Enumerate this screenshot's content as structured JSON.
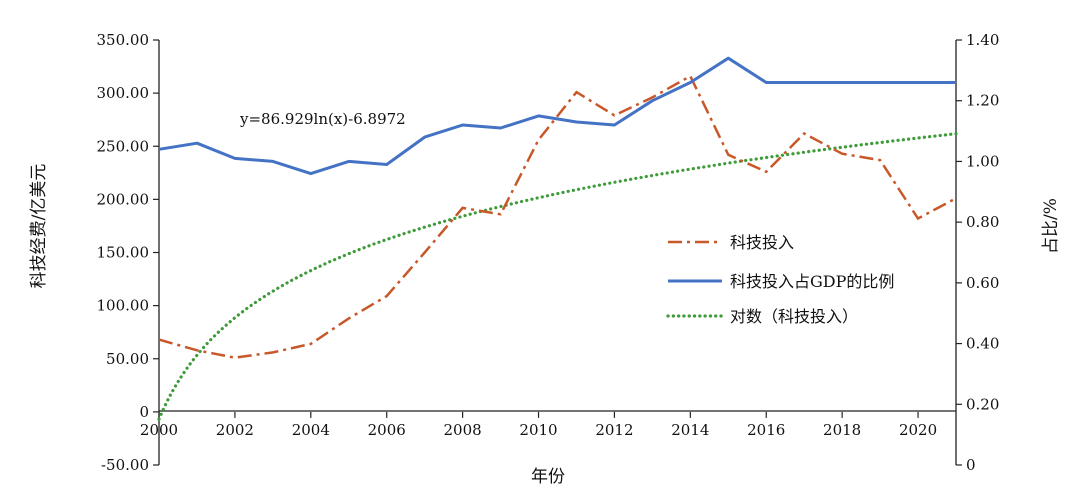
{
  "chart_data": {
    "type": "line",
    "xlabel": "年份",
    "ylabel_left": "科技经费/亿美元",
    "ylabel_right": "占比/%",
    "xlim": [
      2000,
      2021
    ],
    "ylim_left": [
      -50,
      350
    ],
    "ylim_right": [
      0,
      1.4
    ],
    "x_ticks": [
      "2000",
      "2002",
      "2004",
      "2006",
      "2008",
      "2010",
      "2012",
      "2014",
      "2016",
      "2018",
      "2020"
    ],
    "y_left_ticks": [
      "-50.00",
      "0",
      "50.00",
      "100.00",
      "150.00",
      "200.00",
      "250.00",
      "300.00",
      "350.00"
    ],
    "y_right_ticks": [
      "0",
      "0.20",
      "0.40",
      "0.60",
      "0.80",
      "1.00",
      "1.20",
      "1.40"
    ],
    "grid": false,
    "legend_position": "center-right",
    "annotation": "y=86.929ln(x)-6.8972",
    "x": [
      2000,
      2001,
      2002,
      2003,
      2004,
      2005,
      2006,
      2007,
      2008,
      2009,
      2010,
      2011,
      2012,
      2013,
      2014,
      2015,
      2016,
      2017,
      2018,
      2019,
      2020,
      2021
    ],
    "series": [
      {
        "name": "科技投入",
        "axis": "left",
        "style": "dashdot",
        "color": "#C8582A",
        "values": [
          68,
          58,
          51,
          56,
          64,
          88,
          109,
          150,
          192,
          186,
          256,
          301,
          279,
          296,
          316,
          242,
          226,
          262,
          243,
          237,
          182,
          201
        ]
      },
      {
        "name": "科技投入占GDP的比例",
        "axis": "right",
        "style": "solid",
        "color": "#4472C4",
        "values": [
          1.04,
          1.06,
          1.01,
          1.0,
          0.96,
          1.0,
          0.99,
          1.08,
          1.12,
          1.11,
          1.15,
          1.13,
          1.12,
          1.2,
          1.26,
          1.34,
          1.26,
          1.26,
          1.26,
          1.26,
          1.26,
          1.26
        ]
      },
      {
        "name": "对数（科技投入）",
        "axis": "left",
        "style": "dotted",
        "color": "#3E9B3A",
        "trend": {
          "a": 86.929,
          "b": -6.8972
        }
      }
    ]
  }
}
